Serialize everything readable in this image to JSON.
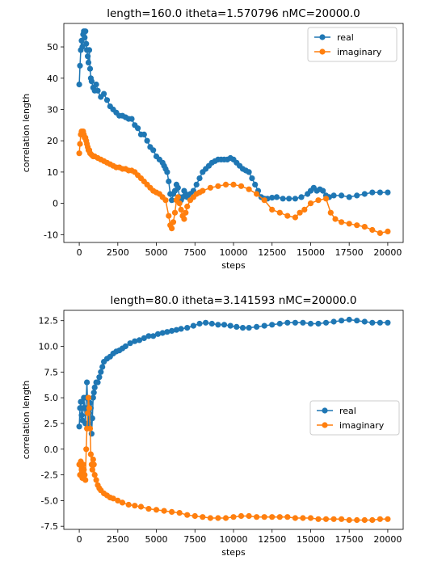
{
  "chart_data": [
    {
      "type": "line",
      "title": "length=160.0 itheta=1.570796 nMC=20000.0",
      "xlabel": "steps",
      "ylabel": "correlation length",
      "xlim": [
        -1000,
        21000
      ],
      "ylim": [
        -12.5,
        57.5
      ],
      "xticks": [
        0,
        2500,
        5000,
        7500,
        10000,
        12500,
        15000,
        17500,
        20000
      ],
      "yticks": [
        -10,
        0,
        10,
        20,
        30,
        40,
        50
      ],
      "ytick_decimals": 0,
      "legend": "top-right",
      "grid": false,
      "series": [
        {
          "name": "real",
          "color": "#1f77b4",
          "x": [
            0,
            50,
            100,
            150,
            200,
            250,
            300,
            350,
            400,
            450,
            500,
            550,
            600,
            650,
            700,
            750,
            800,
            900,
            1000,
            1100,
            1200,
            1400,
            1600,
            1800,
            2000,
            2200,
            2400,
            2600,
            2800,
            3000,
            3200,
            3400,
            3600,
            3800,
            4000,
            4200,
            4400,
            4600,
            4800,
            5000,
            5200,
            5400,
            5500,
            5600,
            5700,
            5800,
            5900,
            6000,
            6100,
            6200,
            6300,
            6400,
            6500,
            6600,
            6700,
            6800,
            6900,
            7000,
            7200,
            7400,
            7600,
            7800,
            8000,
            8200,
            8400,
            8600,
            8800,
            9000,
            9200,
            9400,
            9600,
            9800,
            10000,
            10200,
            10400,
            10600,
            10800,
            11000,
            11200,
            11400,
            11600,
            11800,
            12000,
            12200,
            12500,
            12800,
            13200,
            13600,
            14000,
            14400,
            14800,
            15000,
            15200,
            15400,
            15600,
            15800,
            16000,
            16200,
            16500,
            17000,
            17500,
            18000,
            18500,
            19000,
            19500,
            20000
          ],
          "y": [
            38,
            44,
            49,
            52,
            50,
            54,
            55,
            53,
            55,
            51,
            49,
            47,
            45,
            49,
            43,
            40,
            39,
            37,
            36,
            38,
            36,
            34,
            35,
            33,
            31,
            30,
            29,
            28,
            28,
            27.5,
            27,
            27,
            25,
            24,
            22,
            22,
            20,
            18,
            17,
            15,
            14,
            13,
            12,
            11,
            10,
            7,
            3,
            1,
            3,
            4,
            6,
            5,
            2,
            1,
            2,
            4,
            3,
            2,
            3,
            4,
            6,
            8,
            10,
            11,
            12,
            13,
            13.5,
            14,
            14,
            14,
            14,
            14.5,
            14,
            13,
            12,
            11,
            10.5,
            10,
            8,
            6,
            4,
            2,
            1.5,
            1.5,
            1.8,
            2,
            1.5,
            1.5,
            1.5,
            2,
            3,
            4,
            5,
            4,
            4.5,
            4,
            2.5,
            2,
            2.5,
            2.5,
            2,
            2.5,
            3,
            3.5,
            3.5,
            3.5
          ]
        },
        {
          "name": "imaginary",
          "color": "#ff7f0e",
          "x": [
            0,
            50,
            100,
            150,
            200,
            250,
            300,
            350,
            400,
            450,
            500,
            550,
            600,
            650,
            700,
            800,
            900,
            1000,
            1200,
            1400,
            1600,
            1800,
            2000,
            2200,
            2400,
            2600,
            2800,
            3000,
            3200,
            3400,
            3600,
            3800,
            4000,
            4200,
            4400,
            4600,
            4800,
            5000,
            5200,
            5400,
            5600,
            5800,
            5900,
            6000,
            6100,
            6200,
            6300,
            6400,
            6500,
            6600,
            6700,
            6800,
            6900,
            7000,
            7200,
            7400,
            7600,
            7800,
            8000,
            8500,
            9000,
            9500,
            10000,
            10500,
            11000,
            11500,
            12000,
            12500,
            13000,
            13500,
            14000,
            14300,
            14600,
            15000,
            15500,
            16000,
            16300,
            16600,
            17000,
            17500,
            18000,
            18500,
            19000,
            19500,
            20000
          ],
          "y": [
            16,
            19,
            22,
            23,
            22,
            23,
            22,
            21,
            21,
            20,
            19,
            18,
            17,
            17,
            16,
            15.5,
            15,
            15,
            14.5,
            14,
            13.5,
            13,
            12.5,
            12,
            11.5,
            11.5,
            11,
            11,
            10.5,
            10.5,
            10,
            9,
            8,
            7,
            6,
            5,
            4,
            3.5,
            3,
            2,
            1,
            -4,
            -7,
            -8,
            -6,
            -3,
            1,
            2,
            0,
            -2,
            -4,
            -5,
            -3,
            -1,
            1,
            2,
            3,
            3.5,
            4,
            5,
            5.5,
            6,
            6,
            5.5,
            4.5,
            3,
            1,
            -2,
            -3,
            -4,
            -4.5,
            -3,
            -2,
            0,
            1,
            1.5,
            -3,
            -5,
            -6,
            -6.5,
            -7,
            -7.5,
            -8.5,
            -9.5,
            -9
          ]
        }
      ]
    },
    {
      "type": "line",
      "title": "length=80.0 itheta=3.141593 nMC=20000.0",
      "xlabel": "steps",
      "ylabel": "correlation length",
      "xlim": [
        -1000,
        21000
      ],
      "ylim": [
        -7.8,
        13.5
      ],
      "xticks": [
        0,
        2500,
        5000,
        7500,
        10000,
        12500,
        15000,
        17500,
        20000
      ],
      "yticks": [
        -7.5,
        -5.0,
        -2.5,
        0.0,
        2.5,
        5.0,
        7.5,
        10.0,
        12.5
      ],
      "ytick_decimals": 1,
      "legend": "center-right",
      "grid": false,
      "series": [
        {
          "name": "real",
          "color": "#1f77b4",
          "x": [
            0,
            50,
            100,
            150,
            200,
            250,
            300,
            350,
            400,
            450,
            500,
            550,
            600,
            650,
            700,
            750,
            800,
            850,
            900,
            950,
            1000,
            1100,
            1200,
            1300,
            1400,
            1500,
            1600,
            1800,
            2000,
            2200,
            2400,
            2600,
            2800,
            3000,
            3300,
            3600,
            3900,
            4200,
            4500,
            4800,
            5100,
            5400,
            5700,
            6000,
            6300,
            6600,
            7000,
            7400,
            7800,
            8200,
            8600,
            9000,
            9400,
            9800,
            10200,
            10600,
            11000,
            11500,
            12000,
            12500,
            13000,
            13500,
            14000,
            14500,
            15000,
            15500,
            16000,
            16500,
            17000,
            17500,
            18000,
            18500,
            19000,
            19500,
            20000
          ],
          "y": [
            2.2,
            4.0,
            4.6,
            3.3,
            2.8,
            4.0,
            5.0,
            4.0,
            2.5,
            5.0,
            6.5,
            4.0,
            2.5,
            3.5,
            4.5,
            4.0,
            1.5,
            3.0,
            5.0,
            5.5,
            6.0,
            6.5,
            6.5,
            7.0,
            7.5,
            8.0,
            8.5,
            8.8,
            9.0,
            9.3,
            9.5,
            9.6,
            9.8,
            10.0,
            10.3,
            10.5,
            10.6,
            10.8,
            11.0,
            11.0,
            11.2,
            11.3,
            11.4,
            11.5,
            11.6,
            11.7,
            11.8,
            12.0,
            12.2,
            12.3,
            12.2,
            12.1,
            12.1,
            12.0,
            11.9,
            11.8,
            11.8,
            11.9,
            12.0,
            12.1,
            12.2,
            12.3,
            12.3,
            12.3,
            12.2,
            12.2,
            12.3,
            12.4,
            12.5,
            12.6,
            12.5,
            12.4,
            12.3,
            12.3,
            12.3
          ]
        },
        {
          "name": "imaginary",
          "color": "#ff7f0e",
          "x": [
            0,
            50,
            100,
            150,
            200,
            250,
            300,
            350,
            400,
            450,
            500,
            550,
            600,
            650,
            700,
            750,
            800,
            850,
            900,
            950,
            1000,
            1100,
            1200,
            1300,
            1400,
            1600,
            1800,
            2000,
            2200,
            2500,
            2800,
            3200,
            3600,
            4000,
            4500,
            5000,
            5500,
            6000,
            6500,
            7000,
            7500,
            8000,
            8500,
            9000,
            9500,
            10000,
            10500,
            11000,
            11500,
            12000,
            12500,
            13000,
            13500,
            14000,
            14500,
            15000,
            15500,
            16000,
            16500,
            17000,
            17500,
            18000,
            18500,
            19000,
            19500,
            20000
          ],
          "y": [
            -1.5,
            -2.5,
            -1.2,
            -2.0,
            -2.8,
            -1.5,
            -2.0,
            -2.5,
            -3.0,
            0.0,
            2.0,
            3.5,
            5.0,
            4.0,
            2.0,
            -0.5,
            -1.5,
            -2.0,
            -1.0,
            -1.5,
            -2.5,
            -3.0,
            -3.5,
            -3.8,
            -4.0,
            -4.3,
            -4.5,
            -4.7,
            -4.8,
            -5.0,
            -5.2,
            -5.4,
            -5.5,
            -5.6,
            -5.8,
            -5.9,
            -6.0,
            -6.1,
            -6.2,
            -6.4,
            -6.5,
            -6.6,
            -6.7,
            -6.7,
            -6.7,
            -6.6,
            -6.5,
            -6.5,
            -6.6,
            -6.6,
            -6.6,
            -6.6,
            -6.6,
            -6.7,
            -6.7,
            -6.7,
            -6.8,
            -6.8,
            -6.8,
            -6.8,
            -6.9,
            -6.9,
            -6.9,
            -6.9,
            -6.8,
            -6.8
          ]
        }
      ]
    }
  ]
}
